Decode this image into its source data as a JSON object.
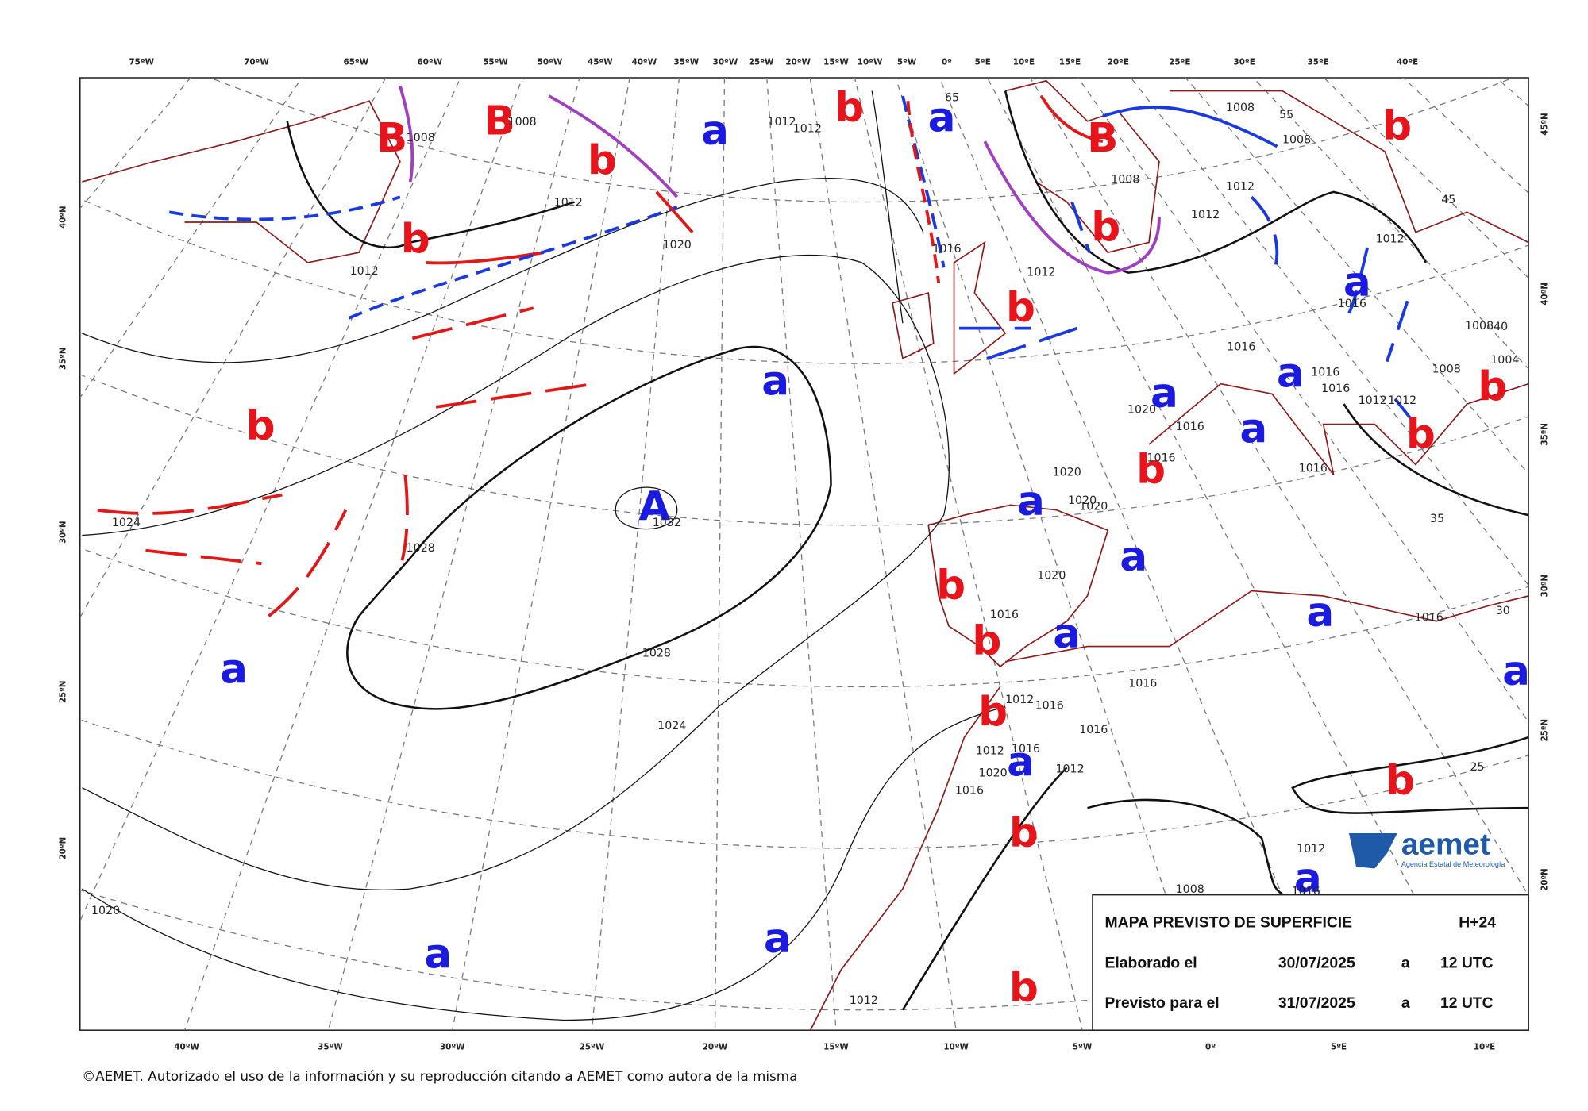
{
  "top_axis": [
    "75ºW",
    "70ºW",
    "65ºW",
    "60ºW",
    "55ºW",
    "50ºW",
    "45ºW",
    "40ºW",
    "35ºW",
    "30ºW",
    "25ºW",
    "20ºW",
    "15ºW",
    "10ºW",
    "5ºW",
    "0º",
    "5ºE",
    "10ºE",
    "15ºE",
    "20ºE",
    "25ºE",
    "30ºE",
    "35ºE",
    "40ºE"
  ],
  "bottom_axis": [
    "40ºW",
    "35ºW",
    "30ºW",
    "25ºW",
    "20ºW",
    "15ºW",
    "10ºW",
    "5ºW",
    "0º",
    "5ºE",
    "10ºE"
  ],
  "left_axis": [
    "40ºN",
    "35ºN",
    "30ºN",
    "25ºN",
    "20ºN"
  ],
  "right_axis": [
    "45ºN",
    "40ºN",
    "35ºN",
    "30ºN",
    "25ºN",
    "20ºN"
  ],
  "pressure_centres": [
    "B",
    "B",
    "b",
    "b",
    "a",
    "b",
    "a",
    "B",
    "b",
    "b",
    "b",
    "a",
    "a",
    "b",
    "A",
    "a",
    "a",
    "a",
    "b",
    "b",
    "b",
    "a",
    "a",
    "b",
    "a",
    "b",
    "a",
    "a",
    "a",
    "b",
    "a",
    "b",
    "b",
    "a",
    "a",
    "a",
    "b"
  ],
  "isobar_labels": [
    "1012",
    "1012",
    "1008",
    "1008",
    "1012",
    "1020",
    "1012",
    "1008",
    "1008",
    "1008",
    "1012",
    "1012",
    "1012",
    "1012",
    "1016",
    "1016",
    "1016",
    "1016",
    "1016",
    "1012",
    "1012",
    "1008",
    "1008",
    "1004",
    "1020",
    "1016",
    "1016",
    "1016",
    "1020",
    "1020",
    "1020",
    "1032",
    "1028",
    "1024",
    "1020",
    "1016",
    "1016",
    "1028",
    "1016",
    "1012",
    "1016",
    "1024",
    "1016",
    "1012",
    "1016",
    "1020",
    "1012",
    "1016",
    "1012",
    "1008",
    "1016",
    "1020",
    "1012",
    "65",
    "55",
    "45",
    "40",
    "35",
    "30",
    "25"
  ],
  "info_box": {
    "title": "MAPA PREVISTO DE SUPERFICIE",
    "step": "H+24",
    "issued": {
      "label": "Elaborado el",
      "date": "30/07/2025",
      "sep": "a",
      "time": "12 UTC"
    },
    "valid": {
      "label": "Previsto para el",
      "date": "31/07/2025",
      "sep": "a",
      "time": "12 UTC"
    }
  },
  "logo": {
    "name": "aemet",
    "subtitle": "Agencia Estatal de Meteorología"
  },
  "footer": "©AEMET. Autorizado el uso de la información y su reproducción citando a AEMET como autora de la misma"
}
